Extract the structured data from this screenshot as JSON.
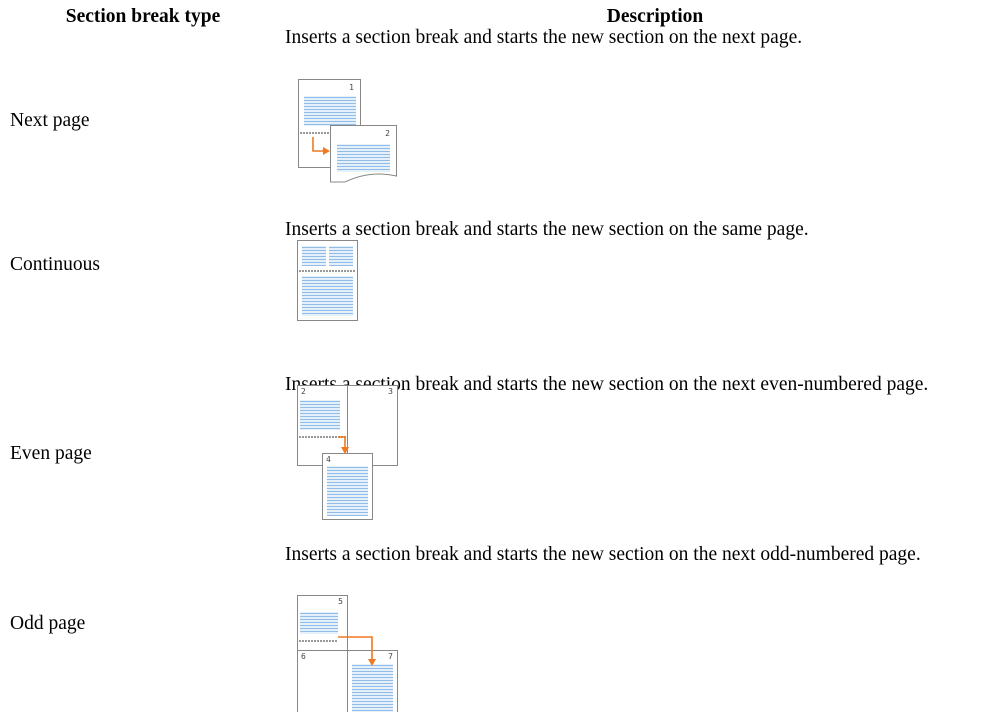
{
  "table": {
    "headers": [
      "Section break type",
      "Description"
    ],
    "rows": [
      {
        "type": "Next page",
        "description": "Inserts a section break and starts the new section on the next page.",
        "icon_labels": [
          "1",
          "2"
        ]
      },
      {
        "type": "Continuous",
        "description": "Inserts a section break and starts the new section on the same page."
      },
      {
        "type": "Even page",
        "description": "Inserts a section break and starts the new section on the next even-numbered page.",
        "icon_labels": [
          "2",
          "3",
          "4"
        ]
      },
      {
        "type": "Odd page",
        "description": "Inserts a section break and starts the new section on the next odd-numbered page.",
        "icon_labels": [
          "5",
          "6",
          "7"
        ]
      }
    ]
  }
}
